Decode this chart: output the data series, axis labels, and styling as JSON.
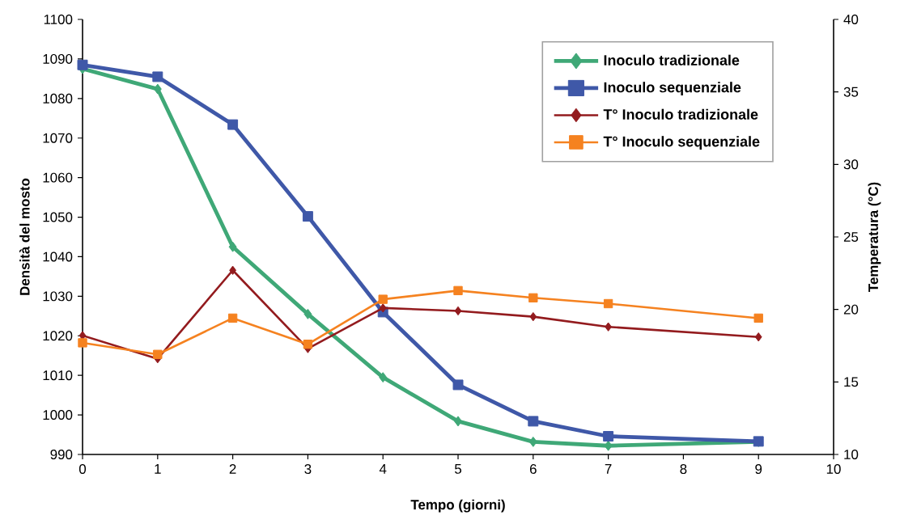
{
  "chart_data": {
    "type": "line",
    "xlabel": "Tempo (giorni)",
    "ylabel": "Densità del mosto",
    "y2label": "Temperatura (°C)",
    "x": [
      0,
      1,
      2,
      3,
      4,
      5,
      6,
      7,
      9
    ],
    "xlim": [
      0,
      10
    ],
    "xticks": [
      0,
      1,
      2,
      3,
      4,
      5,
      6,
      7,
      8,
      9,
      10
    ],
    "ylim": [
      990,
      1100
    ],
    "yticks": [
      990,
      1000,
      1010,
      1020,
      1030,
      1040,
      1050,
      1060,
      1070,
      1080,
      1090,
      1100
    ],
    "y2lim": [
      10,
      40
    ],
    "y2ticks": [
      10,
      15,
      20,
      25,
      30,
      35,
      40
    ],
    "legend": "top right",
    "grid": false,
    "line_style": "solid",
    "series": [
      {
        "name": "Inoculo tradizionale",
        "color": "#3fa877",
        "marker": "diamond",
        "values": [
          1087.5,
          1082.4,
          1042.5,
          1025.5,
          1009.5,
          998.4,
          993.2,
          992.2,
          993.2
        ]
      },
      {
        "name": "Inoculo sequenziale",
        "color": "#3f58a8",
        "marker": "square",
        "values": [
          1088.5,
          1085.5,
          1073.4,
          1050.2,
          1026,
          1007.6,
          998.4,
          994.6,
          993.3
        ]
      },
      {
        "name": "T° Inoculo tradizionale",
        "color": "#931b1e",
        "marker": "diamond",
        "axis": "y2",
        "values": [
          18.2,
          16.6,
          22.7,
          17.3,
          20.1,
          19.9,
          19.5,
          18.8,
          18.1
        ]
      },
      {
        "name": "T° Inoculo sequenziale",
        "color": "#f58220",
        "marker": "square",
        "axis": "y2",
        "values": [
          17.7,
          16.9,
          19.4,
          17.6,
          20.7,
          21.3,
          20.8,
          20.4,
          19.4
        ]
      }
    ]
  }
}
